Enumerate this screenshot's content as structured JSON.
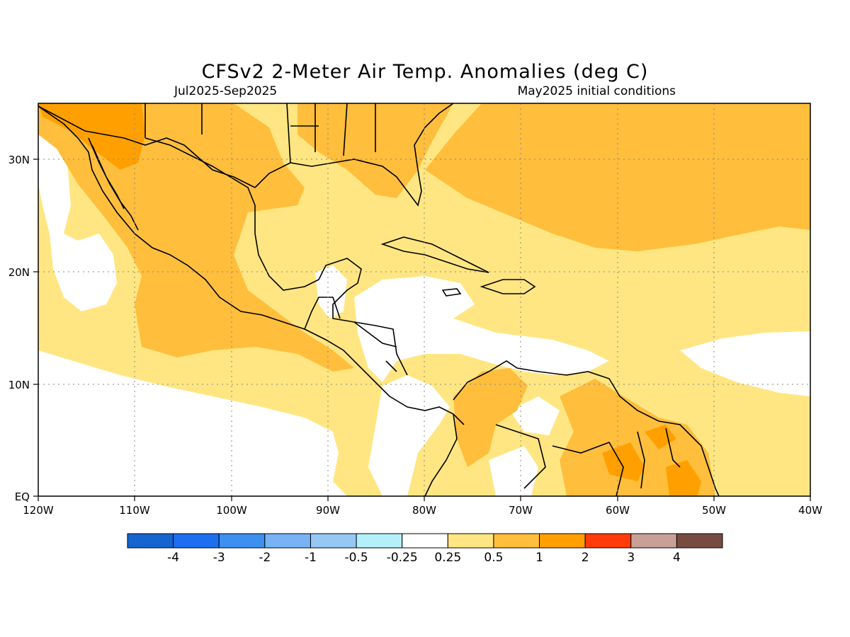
{
  "header": {
    "title": "CFSv2 2-Meter Air Temp. Anomalies (deg C)",
    "period": "Jul2025-Sep2025",
    "init": "May2025 initial conditions"
  },
  "axes": {
    "lon_labels": [
      "120W",
      "110W",
      "100W",
      "90W",
      "80W",
      "70W",
      "60W",
      "50W",
      "40W"
    ],
    "lat_labels": [
      "EQ",
      "10N",
      "20N",
      "30N"
    ]
  },
  "colorbar": {
    "colors": [
      "#1565d0",
      "#1e6ff0",
      "#3c90f0",
      "#78b4f5",
      "#96c8f5",
      "#b4f0fa",
      "#ffffff",
      "#ffe682",
      "#ffbe3c",
      "#ffa000",
      "#ff3c0a",
      "#c8a096",
      "#784b41"
    ],
    "labels": [
      "-4",
      "-3",
      "-2",
      "-1",
      "-0.5",
      "-0.25",
      "0.25",
      "0.5",
      "1",
      "2",
      "3",
      "4"
    ]
  },
  "legend_colors": {
    "ocean_neutral": "#ffffff",
    "anom_025_05": "#ffe682",
    "anom_05_1": "#ffbe3c",
    "anom_1_2": "#ffa000"
  }
}
